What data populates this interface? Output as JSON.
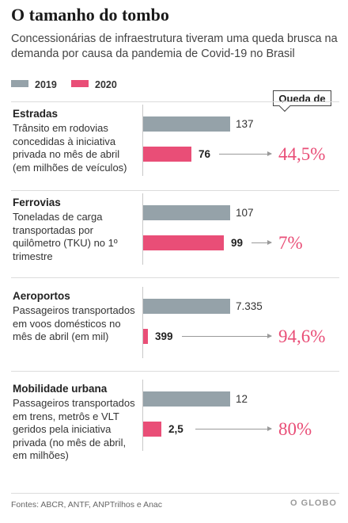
{
  "title": "O tamanho do tombo",
  "subtitle": "Concessionárias de infraestrutura tiveram uma queda brusca na demanda por causa da pandemia de Covid-19 no Brasil",
  "legend": [
    {
      "label": "2019",
      "color": "#95a2a9"
    },
    {
      "label": "2020",
      "color": "#e94e77"
    }
  ],
  "queda_label": "Queda de",
  "footer": "Fontes: ABCR, ANTF, ANPTrilhos e Anac",
  "brand": "O GLOBO",
  "chart_data": [
    {
      "type": "bar",
      "title": "Estradas",
      "description": "Trânsito em rodovias concedidas à iniciativa privada no mês de abril (em milhões de veículos)",
      "categories": [
        "2019",
        "2020"
      ],
      "values": [
        137,
        76
      ],
      "value_labels": [
        "137",
        "76"
      ],
      "drop": "44,5%"
    },
    {
      "type": "bar",
      "title": "Ferrovias",
      "description": "Toneladas de carga transportadas por quilômetro (TKU) no 1º trimestre",
      "categories": [
        "2019",
        "2020"
      ],
      "values": [
        107,
        99
      ],
      "value_labels": [
        "107",
        "99"
      ],
      "drop": "7%"
    },
    {
      "type": "bar",
      "title": "Aeroportos",
      "description": "Passageiros transportados em voos domésticos no mês de abril (em mil)",
      "categories": [
        "2019",
        "2020"
      ],
      "values": [
        7335,
        399
      ],
      "value_labels": [
        "7.335",
        "399"
      ],
      "drop": "94,6%"
    },
    {
      "type": "bar",
      "title": "Mobilidade urbana",
      "description": "Passageiros transportados em trens, metrôs e VLT geridos pela iniciativa privada (no mês de abril, em milhões)",
      "categories": [
        "2019",
        "2020"
      ],
      "values": [
        12,
        2.5
      ],
      "value_labels": [
        "12",
        "2,5"
      ],
      "drop": "80%"
    }
  ]
}
